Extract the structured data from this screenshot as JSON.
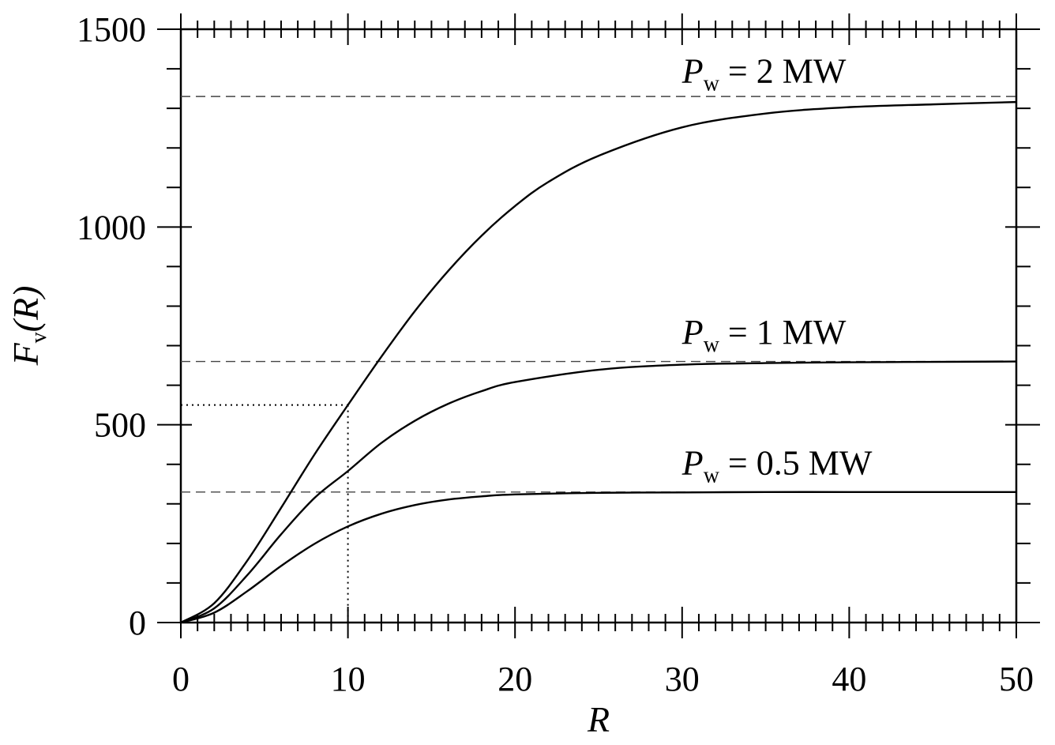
{
  "chart_data": {
    "type": "line",
    "xlabel": "R",
    "ylabel": {
      "main": "F",
      "sub": "v",
      "suffix": "(R)"
    },
    "xlim": [
      0,
      50
    ],
    "ylim": [
      0,
      1500
    ],
    "x_ticks": [
      "0",
      "10",
      "20",
      "30",
      "40",
      "50"
    ],
    "y_ticks": [
      "0",
      "500",
      "1000",
      "1500"
    ],
    "grid": false,
    "series": [
      {
        "name": "P_w = 0.5 MW",
        "asymptote": 330,
        "x": [
          0,
          2,
          4,
          6,
          8,
          10,
          12,
          14,
          16,
          18,
          20,
          25,
          30,
          35,
          40,
          45,
          50
        ],
        "y": [
          0,
          25,
          80,
          143,
          199,
          243,
          275,
          297,
          311,
          319,
          324,
          328,
          329,
          330,
          330,
          330,
          330
        ]
      },
      {
        "name": "P_w = 1 MW",
        "asymptote": 660,
        "x": [
          0,
          2,
          4,
          6,
          8,
          10,
          12,
          14,
          16,
          18,
          20,
          25,
          30,
          35,
          40,
          45,
          50
        ],
        "y": [
          0,
          36,
          121,
          223,
          315,
          383,
          454,
          510,
          553,
          585,
          608,
          639,
          652,
          656,
          658,
          659,
          660
        ]
      },
      {
        "name": "P_w = 2 MW",
        "asymptote": 1330,
        "x": [
          0,
          2,
          4,
          6,
          8,
          10,
          12,
          14,
          16,
          18,
          20,
          22,
          25,
          30,
          35,
          40,
          45,
          50
        ],
        "y": [
          0,
          49,
          158,
          290,
          425,
          550,
          672,
          787,
          889,
          978,
          1053,
          1114,
          1180,
          1252,
          1287,
          1303,
          1310,
          1316
        ]
      }
    ],
    "annotations": [
      {
        "label": {
          "italic": "P",
          "sub": "w",
          "rest": " = 2 MW"
        },
        "x": 30,
        "y": 1365
      },
      {
        "label": {
          "italic": "P",
          "sub": "w",
          "rest": " = 1 MW"
        },
        "x": 30,
        "y": 705
      },
      {
        "label": {
          "italic": "P",
          "sub": "w",
          "rest": " = 0.5 MW"
        },
        "x": 30,
        "y": 375
      }
    ],
    "marker_point": {
      "x": 10,
      "y": 550
    }
  }
}
